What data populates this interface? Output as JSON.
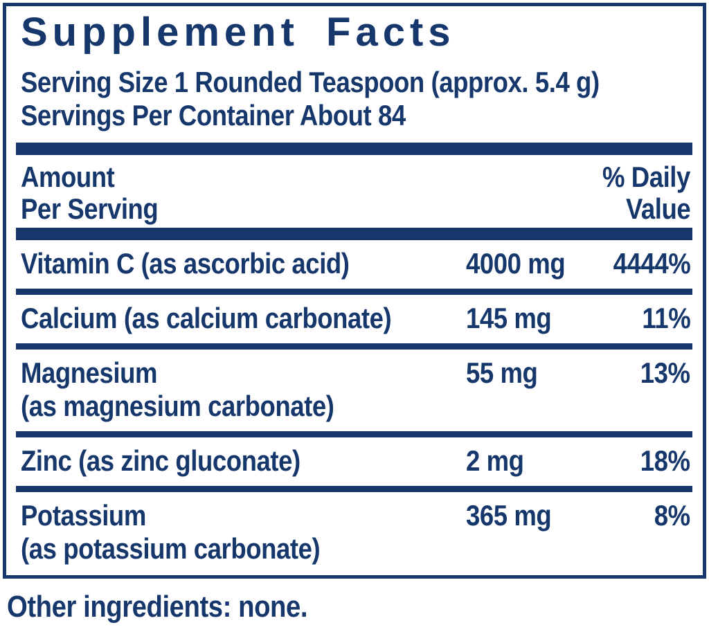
{
  "colors": {
    "navy": "#16376c",
    "background": "#ffffff"
  },
  "panel": {
    "title": "Supplement Facts",
    "serving_size": "Serving Size 1 Rounded Teaspoon (approx. 5.4 g)",
    "servings_per_container": "Servings Per Container About 84",
    "header": {
      "amount_line1": "Amount",
      "amount_line2": "Per Serving",
      "dv_line1": "% Daily",
      "dv_line2": "Value"
    },
    "rows": [
      {
        "name": "Vitamin C (as ascorbic acid)",
        "name_line2": "",
        "amount": "4000 mg",
        "daily_value": "4444%"
      },
      {
        "name": "Calcium (as calcium carbonate)",
        "name_line2": "",
        "amount": "145 mg",
        "daily_value": "11%"
      },
      {
        "name": "Magnesium",
        "name_line2": "(as magnesium carbonate)",
        "amount": "55 mg",
        "daily_value": "13%"
      },
      {
        "name": "Zinc (as zinc gluconate)",
        "name_line2": "",
        "amount": "2 mg",
        "daily_value": "18%"
      },
      {
        "name": "Potassium",
        "name_line2": "(as potassium carbonate)",
        "amount": "365 mg",
        "daily_value": "8%"
      }
    ]
  },
  "footer": {
    "other_ingredients": "Other ingredients: none."
  }
}
